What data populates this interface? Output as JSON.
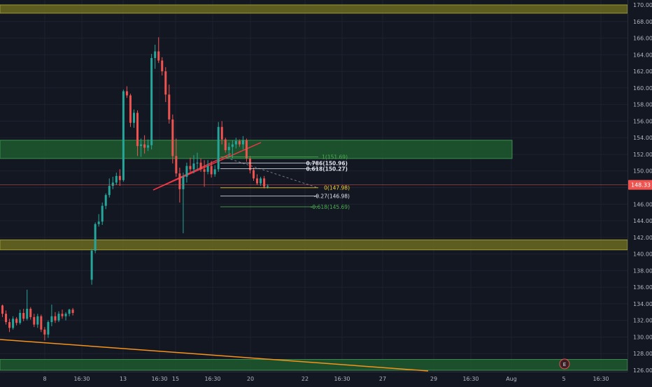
{
  "colors": {
    "background": "#131722",
    "grid": "#1e2230",
    "axis_text": "#b2b5be",
    "up": "#26a69a",
    "down": "#ef5350",
    "olive_zone": "#6b6a1e",
    "green_zone": "#1f5a2f",
    "trendline": "#f7931a",
    "price_line": "#ef5350",
    "price_badge": "#ef5350",
    "fib_green": "#4caf50",
    "fib_white": "#e0e3eb",
    "fib_yellow": "#f5d33a"
  },
  "current_price": "148.33",
  "earnings_marker": "E",
  "chart_data": {
    "type": "candlestick",
    "ylim": [
      126,
      170
    ],
    "y_ticks": [
      "126.00",
      "128.00",
      "130.00",
      "132.00",
      "134.00",
      "136.00",
      "138.00",
      "140.00",
      "142.00",
      "144.00",
      "146.00",
      "148.00",
      "150.00",
      "152.00",
      "154.00",
      "156.00",
      "158.00",
      "160.00",
      "162.00",
      "164.00",
      "166.00",
      "168.00",
      "170.00"
    ],
    "x_ticks": [
      "8",
      "16:30",
      "13",
      "16:30",
      "15",
      "16:30",
      "20",
      "22",
      "16:30",
      "27",
      "29",
      "16:30",
      "Aug",
      "5",
      "16:30"
    ],
    "zones": [
      {
        "kind": "olive",
        "low": 169.0,
        "high": 170.0
      },
      {
        "kind": "green",
        "low": 151.5,
        "high": 153.7
      },
      {
        "kind": "olive",
        "low": 140.5,
        "high": 141.7
      },
      {
        "kind": "green",
        "low": 126.0,
        "high": 127.3
      }
    ],
    "fib_levels": [
      {
        "label": "1(151.69)",
        "value": 151.69,
        "color": "green"
      },
      {
        "label": "0.786(150.96)",
        "value": 150.96,
        "color": "white"
      },
      {
        "label": "0.618(150.27)",
        "value": 150.27,
        "color": "white"
      },
      {
        "label": "0(147.98)",
        "value": 147.98,
        "color": "yellow"
      },
      {
        "label": "-0.27(146.98)",
        "value": 146.98,
        "color": "white"
      },
      {
        "label": "-0.618(145.69)",
        "value": 145.69,
        "color": "green"
      }
    ],
    "candles": [
      [
        133.8,
        133.9,
        132.4,
        132.8
      ],
      [
        132.8,
        133.2,
        131.5,
        131.8
      ],
      [
        131.8,
        132.2,
        130.6,
        131.1
      ],
      [
        131.1,
        132.5,
        130.9,
        132.2
      ],
      [
        132.2,
        132.4,
        131.4,
        131.7
      ],
      [
        131.7,
        133.3,
        131.5,
        132.9
      ],
      [
        132.9,
        133.4,
        131.9,
        132.2
      ],
      [
        132.2,
        135.7,
        132.0,
        133.4
      ],
      [
        133.4,
        133.6,
        132.1,
        132.4
      ],
      [
        132.4,
        132.8,
        131.2,
        131.5
      ],
      [
        131.5,
        132.8,
        131.1,
        132.5
      ],
      [
        132.5,
        132.7,
        130.6,
        130.9
      ],
      [
        130.9,
        131.2,
        129.6,
        130.3
      ],
      [
        130.3,
        132.0,
        129.9,
        131.8
      ],
      [
        131.8,
        133.9,
        131.3,
        132.5
      ],
      [
        132.5,
        133.0,
        131.7,
        132.0
      ],
      [
        132.0,
        133.1,
        131.8,
        132.8
      ],
      [
        132.8,
        133.3,
        132.2,
        132.5
      ],
      [
        132.5,
        133.0,
        132.0,
        132.8
      ],
      [
        132.8,
        133.4,
        132.5,
        133.3
      ],
      [
        133.3,
        133.5,
        132.6,
        132.9
      ],
      [
        136.9,
        140.6,
        136.3,
        140.4
      ],
      [
        140.4,
        143.8,
        140.1,
        143.6
      ],
      [
        143.6,
        144.8,
        143.3,
        143.9
      ],
      [
        143.9,
        146.2,
        143.5,
        145.8
      ],
      [
        145.8,
        147.3,
        145.4,
        147.1
      ],
      [
        147.1,
        149.1,
        146.8,
        148.2
      ],
      [
        148.2,
        149.3,
        147.8,
        148.6
      ],
      [
        148.6,
        149.8,
        148.3,
        149.4
      ],
      [
        149.4,
        150.2,
        148.2,
        148.9
      ],
      [
        148.9,
        159.8,
        148.7,
        159.6
      ],
      [
        159.6,
        160.2,
        158.8,
        159.1
      ],
      [
        159.1,
        159.3,
        155.3,
        155.8
      ],
      [
        155.8,
        157.4,
        155.2,
        157.0
      ],
      [
        157.0,
        157.3,
        151.8,
        153.0
      ],
      [
        153.0,
        153.9,
        151.7,
        153.2
      ],
      [
        153.2,
        154.3,
        152.1,
        152.8
      ],
      [
        152.8,
        153.8,
        152.4,
        153.1
      ],
      [
        153.1,
        164.1,
        152.6,
        163.6
      ],
      [
        163.6,
        165.2,
        162.3,
        164.4
      ],
      [
        164.4,
        166.1,
        163.0,
        163.3
      ],
      [
        163.3,
        163.7,
        161.5,
        162.0
      ],
      [
        162.0,
        162.5,
        158.3,
        159.2
      ],
      [
        159.2,
        160.4,
        155.7,
        156.2
      ],
      [
        156.2,
        156.8,
        150.9,
        151.8
      ],
      [
        151.8,
        153.9,
        149.3,
        149.7
      ],
      [
        149.7,
        150.4,
        146.2,
        147.8
      ],
      [
        147.8,
        149.8,
        142.5,
        149.3
      ],
      [
        149.3,
        151.0,
        148.6,
        150.6
      ],
      [
        150.6,
        151.6,
        149.9,
        150.2
      ],
      [
        150.2,
        151.9,
        149.7,
        150.9
      ],
      [
        150.9,
        152.2,
        150.1,
        151.0
      ],
      [
        151.0,
        151.5,
        149.9,
        150.2
      ],
      [
        150.2,
        151.3,
        148.1,
        149.9
      ],
      [
        149.9,
        151.3,
        149.6,
        150.6
      ],
      [
        150.6,
        151.2,
        149.2,
        149.6
      ],
      [
        149.6,
        150.7,
        149.3,
        150.2
      ],
      [
        150.2,
        155.9,
        149.9,
        155.3
      ],
      [
        155.3,
        156.0,
        153.2,
        153.8
      ],
      [
        153.8,
        154.0,
        152.2,
        152.5
      ],
      [
        152.5,
        153.4,
        151.6,
        152.9
      ],
      [
        152.9,
        153.7,
        151.5,
        153.2
      ],
      [
        153.2,
        154.0,
        152.7,
        153.6
      ],
      [
        153.6,
        153.8,
        152.9,
        153.2
      ],
      [
        153.2,
        154.2,
        152.6,
        153.7
      ],
      [
        153.7,
        153.9,
        151.1,
        151.5
      ],
      [
        151.5,
        151.8,
        149.7,
        150.1
      ],
      [
        150.1,
        150.4,
        148.8,
        149.1
      ],
      [
        149.1,
        149.6,
        148.3,
        148.5
      ],
      [
        148.5,
        149.3,
        148.2,
        149.1
      ],
      [
        149.1,
        149.4,
        147.9,
        148.1
      ],
      [
        148.1,
        148.4,
        147.9,
        148.2
      ]
    ]
  }
}
